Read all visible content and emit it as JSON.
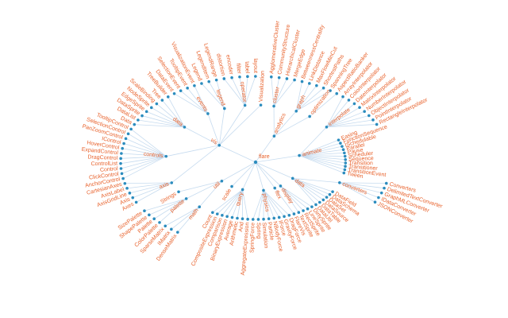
{
  "tree": {
    "name": "flare",
    "children": [
      {
        "name": "analytics",
        "children": [
          {
            "name": "cluster",
            "children": [
              {
                "name": "AgglomerativeCluster"
              },
              {
                "name": "CommunityStructure"
              },
              {
                "name": "HierarchicalCluster"
              },
              {
                "name": "MergeEdge"
              }
            ]
          },
          {
            "name": "graph",
            "children": [
              {
                "name": "BetweennessCentrality"
              },
              {
                "name": "LinkDistance"
              },
              {
                "name": "MaxFlowMinCut"
              },
              {
                "name": "ShortestPaths"
              },
              {
                "name": "SpanningTree"
              }
            ]
          },
          {
            "name": "optimization",
            "children": [
              {
                "name": "AspectRatioBanker"
              }
            ]
          }
        ]
      },
      {
        "name": "animate",
        "children": [
          {
            "name": "interpolate",
            "children": [
              {
                "name": "ArrayInterpolator"
              },
              {
                "name": "ColorInterpolator"
              },
              {
                "name": "DateInterpolator"
              },
              {
                "name": "MatrixInterpolator"
              },
              {
                "name": "NumberInterpolator"
              },
              {
                "name": "ObjectInterpolator"
              },
              {
                "name": "PointInterpolator"
              },
              {
                "name": "RectangleInterpolator"
              }
            ]
          },
          {
            "name": "Easing"
          },
          {
            "name": "FunctionSequence"
          },
          {
            "name": "ISchedulable"
          },
          {
            "name": "Parallel"
          },
          {
            "name": "Pause"
          },
          {
            "name": "Scheduler"
          },
          {
            "name": "Sequence"
          },
          {
            "name": "Transition"
          },
          {
            "name": "Transitioner"
          },
          {
            "name": "TransitionEvent"
          },
          {
            "name": "Tween"
          }
        ]
      },
      {
        "name": "data",
        "children": [
          {
            "name": "converters",
            "children": [
              {
                "name": "Converters"
              },
              {
                "name": "DelimitedTextConverter"
              },
              {
                "name": "GraphMLConverter"
              },
              {
                "name": "IDataConverter"
              },
              {
                "name": "JSONConverter"
              }
            ]
          },
          {
            "name": "DataField"
          },
          {
            "name": "DataSchema"
          },
          {
            "name": "DataSet"
          },
          {
            "name": "DataSource"
          },
          {
            "name": "DataTable"
          },
          {
            "name": "DataUtil"
          }
        ]
      },
      {
        "name": "display",
        "children": [
          {
            "name": "DirtySprite"
          },
          {
            "name": "LineSprite"
          },
          {
            "name": "RectSprite"
          },
          {
            "name": "TextSprite"
          }
        ]
      },
      {
        "name": "flex",
        "children": [
          {
            "name": "FlareVis"
          }
        ]
      },
      {
        "name": "physics",
        "children": [
          {
            "name": "DragForce"
          },
          {
            "name": "GravityForce"
          },
          {
            "name": "IForce"
          },
          {
            "name": "NBodyForce"
          },
          {
            "name": "Particle"
          },
          {
            "name": "Simulation"
          },
          {
            "name": "Spring"
          },
          {
            "name": "SpringForce"
          }
        ]
      },
      {
        "name": "query",
        "children": [
          {
            "name": "AggregateExpression"
          },
          {
            "name": "And"
          },
          {
            "name": "Arithmetic"
          },
          {
            "name": "Average"
          },
          {
            "name": "BinaryExpression"
          },
          {
            "name": "Comparison"
          },
          {
            "name": "CompositeExpression"
          },
          {
            "name": "Count"
          }
        ]
      },
      {
        "name": "scale"
      },
      {
        "name": "util",
        "children": [
          {
            "name": "math",
            "children": [
              {
                "name": "DenseMatrix"
              },
              {
                "name": "IMatrix"
              },
              {
                "name": "SparseMatrix"
              }
            ]
          },
          {
            "name": "palette",
            "children": [
              {
                "name": "ColorPalette"
              },
              {
                "name": "Palette"
              },
              {
                "name": "ShapePalette"
              },
              {
                "name": "SizePalette"
              }
            ]
          },
          {
            "name": "Strings"
          }
        ]
      },
      {
        "name": "vis",
        "children": [
          {
            "name": "axis",
            "children": [
              {
                "name": "Axes"
              },
              {
                "name": "Axis"
              },
              {
                "name": "AxisGridLine"
              },
              {
                "name": "AxisLabel"
              },
              {
                "name": "CartesianAxes"
              }
            ]
          },
          {
            "name": "controls",
            "children": [
              {
                "name": "AnchorControl"
              },
              {
                "name": "ClickControl"
              },
              {
                "name": "Control"
              },
              {
                "name": "ControlList"
              },
              {
                "name": "DragControl"
              },
              {
                "name": "ExpandControl"
              },
              {
                "name": "HoverControl"
              },
              {
                "name": "IControl"
              },
              {
                "name": "PanZoomControl"
              },
              {
                "name": "SelectionControl"
              },
              {
                "name": "TooltipControl"
              }
            ]
          },
          {
            "name": "data",
            "children": [
              {
                "name": "Data"
              },
              {
                "name": "DataList"
              },
              {
                "name": "DataSprite"
              },
              {
                "name": "EdgeSprite"
              },
              {
                "name": "NodeSprite"
              },
              {
                "name": "ScaleBinding"
              },
              {
                "name": "Tree"
              },
              {
                "name": "TreeBuilder"
              }
            ]
          },
          {
            "name": "events",
            "children": [
              {
                "name": "DataEvent"
              },
              {
                "name": "SelectionEvent"
              },
              {
                "name": "TooltipEvent"
              },
              {
                "name": "VisualizationEvent"
              }
            ]
          },
          {
            "name": "legend",
            "children": [
              {
                "name": "Legend"
              },
              {
                "name": "LegendItem"
              },
              {
                "name": "LegendRange"
              }
            ]
          },
          {
            "name": "operator",
            "children": [
              {
                "name": "distortion"
              },
              {
                "name": "encoder"
              },
              {
                "name": "filter"
              },
              {
                "name": "label"
              },
              {
                "name": "layout"
              }
            ]
          },
          {
            "name": "Visualization"
          }
        ]
      }
    ]
  }
}
